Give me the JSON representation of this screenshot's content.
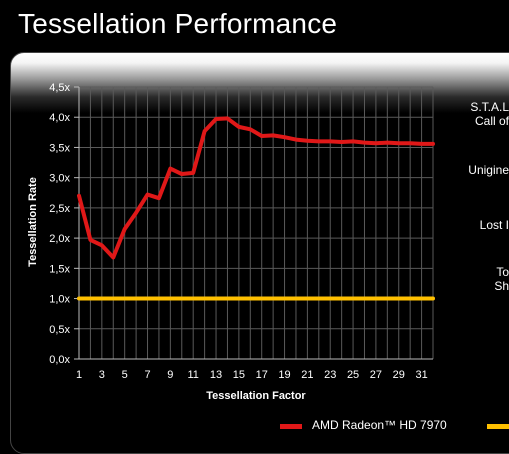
{
  "title": "Tessellation Performance",
  "side_labels": [
    "S.T.A.L",
    "Call of",
    "Unigine",
    "Lost I",
    "To",
    "Sh"
  ],
  "chart_data": {
    "type": "line",
    "xlabel": "Tessellation Factor",
    "ylabel": "Tessellation Rate",
    "xlim": [
      1,
      32
    ],
    "ylim": [
      0,
      4.5
    ],
    "x_ticks": [
      1,
      3,
      5,
      7,
      9,
      11,
      13,
      15,
      17,
      19,
      21,
      23,
      25,
      27,
      29,
      31
    ],
    "y_ticks": [
      "0,0x",
      "0,5x",
      "1,0x",
      "1,5x",
      "2,0x",
      "2,5x",
      "3,0x",
      "3,5x",
      "4,0x",
      "4,5x"
    ],
    "y_tick_values": [
      0,
      0.5,
      1,
      1.5,
      2,
      2.5,
      3,
      3.5,
      4,
      4.5
    ],
    "grid": true,
    "legend_position": "bottom",
    "x": [
      1,
      2,
      3,
      4,
      5,
      6,
      7,
      8,
      9,
      10,
      11,
      12,
      13,
      14,
      15,
      16,
      17,
      18,
      19,
      20,
      21,
      22,
      23,
      24,
      25,
      26,
      27,
      28,
      29,
      30,
      31,
      32
    ],
    "series": [
      {
        "name": "AMD Radeon™ HD 7970",
        "color": "#e01818",
        "values": [
          2.7,
          1.97,
          1.88,
          1.68,
          2.15,
          2.42,
          2.72,
          2.66,
          3.15,
          3.06,
          3.08,
          3.77,
          3.97,
          3.98,
          3.84,
          3.8,
          3.69,
          3.7,
          3.67,
          3.63,
          3.61,
          3.6,
          3.6,
          3.59,
          3.6,
          3.58,
          3.57,
          3.58,
          3.57,
          3.57,
          3.56,
          3.56
        ]
      },
      {
        "name": "",
        "color": "#ffc000",
        "values": [
          1,
          1,
          1,
          1,
          1,
          1,
          1,
          1,
          1,
          1,
          1,
          1,
          1,
          1,
          1,
          1,
          1,
          1,
          1,
          1,
          1,
          1,
          1,
          1,
          1,
          1,
          1,
          1,
          1,
          1,
          1,
          1
        ]
      }
    ]
  }
}
